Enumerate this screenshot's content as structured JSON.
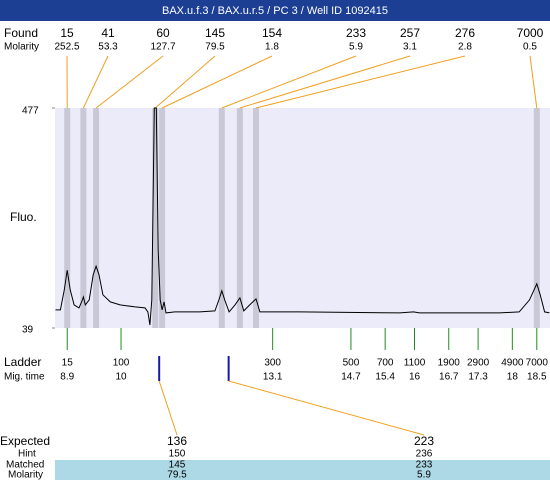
{
  "chart_data": {
    "type": "line",
    "title": "BAX.u.f.3 / BAX.u.r.5 / PC 3 / Well ID 1092415",
    "y_label": "Fluo.",
    "ylim": [
      39,
      477
    ],
    "yticks": [
      39,
      477
    ],
    "xlim": [
      8.65,
      18.77
    ],
    "color": "#000000",
    "x": [
      8.66,
      8.76,
      8.84,
      8.9,
      8.96,
      9.04,
      9.14,
      9.21,
      9.23,
      9.27,
      9.35,
      9.43,
      9.49,
      9.55,
      9.63,
      9.78,
      9.98,
      10.29,
      10.49,
      10.55,
      10.59,
      10.63,
      10.68,
      10.7,
      10.72,
      10.76,
      10.8,
      10.84,
      10.88,
      10.92,
      11.1,
      11.61,
      11.92,
      12.0,
      12.06,
      12.12,
      12.21,
      12.33,
      12.43,
      12.51,
      12.63,
      12.76,
      12.84,
      13.66,
      15.7,
      15.98,
      16.1,
      17.74,
      18.14,
      18.35,
      18.5,
      18.57,
      18.66,
      18.76
    ],
    "values": [
      75,
      75,
      115,
      154,
      115,
      85,
      79,
      95,
      101,
      85,
      95,
      145,
      162,
      145,
      105,
      91,
      85,
      81,
      79,
      71,
      45,
      95,
      477,
      477,
      477,
      194,
      95,
      75,
      91,
      69,
      71,
      71,
      73,
      95,
      113,
      95,
      71,
      85,
      99,
      73,
      85,
      97,
      71,
      71,
      69,
      71,
      69,
      69,
      71,
      95,
      127,
      105,
      71,
      69
    ],
    "found": {
      "label": "Found",
      "molarity_label": "Molarity",
      "sizes": [
        15,
        41,
        60,
        145,
        154,
        233,
        257,
        276,
        7000
      ],
      "molarity": [
        252.5,
        53.3,
        127.7,
        79.5,
        1.8,
        5.9,
        3.1,
        2.8,
        0.5
      ],
      "mig_times": [
        8.9,
        9.23,
        9.49,
        10.7,
        10.84,
        12.06,
        12.43,
        12.76,
        18.5
      ]
    },
    "ladder": {
      "label": "Ladder",
      "mig_label": "Mig. time",
      "sizes": [
        15,
        100,
        300,
        500,
        700,
        1100,
        1900,
        2900,
        4900,
        7000
      ],
      "mig_times": [
        8.9,
        10,
        13.1,
        14.7,
        15.4,
        16,
        16.7,
        17.3,
        18,
        18.5
      ]
    },
    "expected": {
      "label": "Expected",
      "hint_label": "Hint",
      "matched_label": "Matched",
      "molarity_label": "Molarity",
      "sizes": [
        136,
        223
      ],
      "hints": [
        150,
        236
      ],
      "matched": [
        145,
        233
      ],
      "molarity": [
        79.5,
        5.9
      ],
      "mig_times": [
        10.78,
        12.2
      ]
    }
  }
}
